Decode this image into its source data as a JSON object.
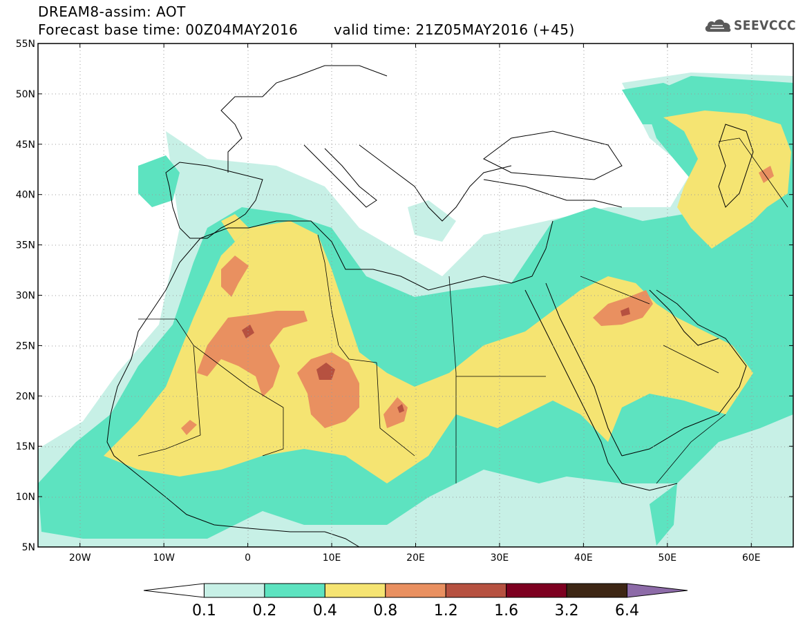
{
  "header": {
    "title_line1": "DREAM8-assim: AOT",
    "title_line2": "Forecast base time: 00Z04MAY2016",
    "valid_time": "valid time: 21Z05MAY2016 (+45)"
  },
  "logo": {
    "text": "SEEVCCC",
    "icon": "cloud-icon"
  },
  "map": {
    "lon_range": [
      -25,
      65
    ],
    "lat_range": [
      5,
      55
    ],
    "lat_ticks": [
      "55N",
      "50N",
      "45N",
      "40N",
      "35N",
      "30N",
      "25N",
      "20N",
      "15N",
      "10N",
      "5N"
    ],
    "lon_ticks": [
      "20W",
      "10W",
      "0",
      "10E",
      "20E",
      "30E",
      "40E",
      "50E",
      "60E"
    ],
    "grid": "dotted"
  },
  "colorbar": {
    "labels": [
      "0.1",
      "0.2",
      "0.4",
      "0.8",
      "1.2",
      "1.6",
      "3.2",
      "6.4"
    ],
    "colors": [
      "#ffffff",
      "#c7f0e6",
      "#5de3c0",
      "#f5e472",
      "#e99060",
      "#b65140",
      "#7d0020",
      "#3d2614",
      "#8d6ba8"
    ]
  }
}
